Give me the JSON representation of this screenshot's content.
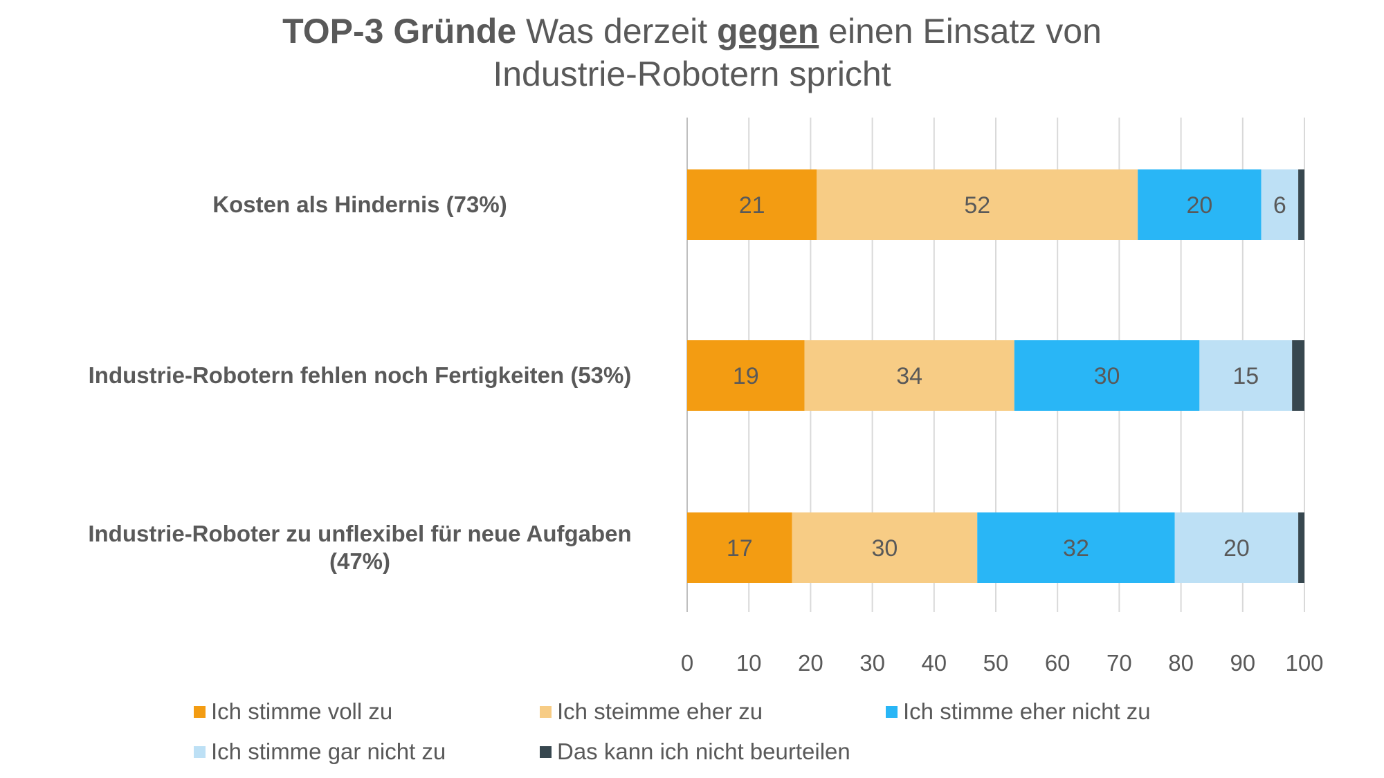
{
  "title": {
    "bold_part": "TOP-3 Gründe",
    "part_before_emphasis": " Was derzeit ",
    "emphasis": "gegen",
    "part_after_emphasis": " einen Einsatz von",
    "line2": "Industrie-Robotern spricht"
  },
  "chart_data": {
    "type": "bar",
    "orientation": "horizontal",
    "stacked": true,
    "categories": [
      "Kosten als Hindernis (73%)",
      "Industrie-Robotern fehlen noch Fertigkeiten (53%)",
      "Industrie-Roboter zu unflexibel für neue Aufgaben (47%)"
    ],
    "category_label_lines": [
      [
        "Kosten als Hindernis (73%)"
      ],
      [
        "Industrie-Robotern fehlen noch Fertigkeiten (53%)"
      ],
      [
        "Industrie-Roboter zu unflexibel für neue Aufgaben",
        "(47%)"
      ]
    ],
    "series": [
      {
        "name": "Ich stimme voll zu",
        "color": "#F39C12",
        "values": [
          21,
          19,
          17
        ],
        "labels": [
          "21",
          "19",
          "17"
        ]
      },
      {
        "name": "Ich steimme eher zu",
        "color": "#F7CC85",
        "values": [
          52,
          34,
          30
        ],
        "labels": [
          "52",
          "34",
          "30"
        ]
      },
      {
        "name": "Ich stimme eher nicht zu",
        "color": "#29B6F6",
        "values": [
          20,
          30,
          32
        ],
        "labels": [
          "20",
          "30",
          "32"
        ]
      },
      {
        "name": "Ich stimme gar nicht zu",
        "color": "#BDE0F5",
        "values": [
          6,
          15,
          20
        ],
        "labels": [
          "6",
          "15",
          "20"
        ]
      },
      {
        "name": "Das kann ich nicht beurteilen",
        "color": "#37474F",
        "values": [
          1,
          2,
          1
        ],
        "labels": [
          "",
          "",
          ""
        ]
      }
    ],
    "xlim": [
      0,
      100
    ],
    "xticks": [
      0,
      10,
      20,
      30,
      40,
      50,
      60,
      70,
      80,
      90,
      100
    ],
    "xtick_labels": [
      "0",
      "10",
      "20",
      "30",
      "40",
      "50",
      "60",
      "70",
      "80",
      "90",
      "100"
    ],
    "grid": true,
    "legend_position": "bottom"
  }
}
